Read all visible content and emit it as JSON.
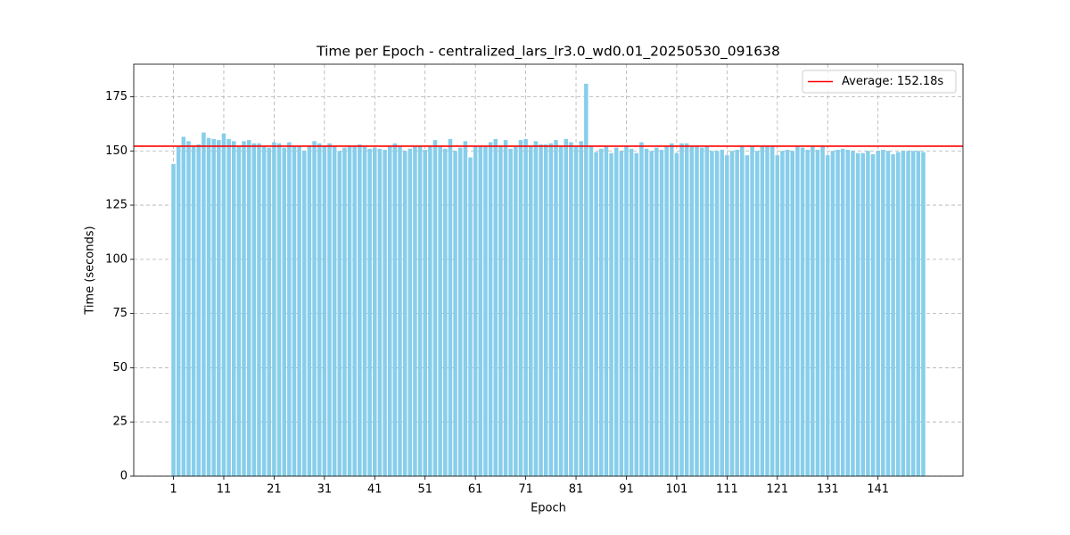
{
  "chart_data": {
    "type": "bar",
    "title": "Time per Epoch - centralized_lars_lr3.0_wd0.01_20250530_091638",
    "x_label": "Epoch",
    "y_label": "Time (seconds)",
    "color": "#87ceeb",
    "x": [
      1,
      2,
      3,
      4,
      5,
      6,
      7,
      8,
      9,
      10,
      11,
      12,
      13,
      14,
      15,
      16,
      17,
      18,
      19,
      20,
      21,
      22,
      23,
      24,
      25,
      26,
      27,
      28,
      29,
      30,
      31,
      32,
      33,
      34,
      35,
      36,
      37,
      38,
      39,
      40,
      41,
      42,
      43,
      44,
      45,
      46,
      47,
      48,
      49,
      50,
      51,
      52,
      53,
      54,
      55,
      56,
      57,
      58,
      59,
      60,
      61,
      62,
      63,
      64,
      65,
      66,
      67,
      68,
      69,
      70,
      71,
      72,
      73,
      74,
      75,
      76,
      77,
      78,
      79,
      80,
      81,
      82,
      83,
      84,
      85,
      86,
      87,
      88,
      89,
      90,
      91,
      92,
      93,
      94,
      95,
      96,
      97,
      98,
      99,
      100,
      101,
      102,
      103,
      104,
      105,
      106,
      107,
      108,
      109,
      110,
      111,
      112,
      113,
      114,
      115,
      116,
      117,
      118,
      119,
      120,
      121,
      122,
      123,
      124,
      125,
      126,
      127,
      128,
      129,
      130,
      131,
      132,
      133,
      134,
      135,
      136,
      137,
      138,
      139,
      140,
      141,
      142,
      143,
      144,
      145,
      146,
      147,
      148,
      149,
      150
    ],
    "values": [
      144,
      152,
      156.5,
      154.5,
      152,
      153,
      158.5,
      156,
      155.5,
      155,
      158,
      155.5,
      154.5,
      152,
      154.5,
      155,
      153.5,
      153.5,
      152,
      151.5,
      154,
      153.5,
      151.5,
      154,
      152,
      152,
      150,
      152.5,
      154.5,
      153.5,
      152,
      153.5,
      152,
      150,
      151.5,
      152,
      152,
      153,
      152,
      151,
      151.5,
      151,
      150.5,
      152,
      153.5,
      152,
      150,
      151,
      152,
      152,
      150.5,
      152,
      155,
      152,
      151,
      155.5,
      150,
      151.5,
      154.5,
      147,
      152,
      152,
      152,
      154,
      155.5,
      152,
      155,
      151,
      152,
      155,
      155.5,
      152,
      154.5,
      153,
      153,
      153.5,
      155,
      152,
      155.5,
      154,
      152,
      154.5,
      181,
      152,
      149.5,
      151,
      152,
      149,
      151.5,
      150,
      152,
      151,
      149,
      154,
      151,
      150,
      151.5,
      150.5,
      152,
      153.5,
      149,
      153.5,
      153.5,
      152,
      152,
      151.5,
      152,
      150,
      150,
      150.5,
      148,
      150,
      150.5,
      152,
      148,
      152,
      150,
      152,
      152,
      152,
      148,
      150,
      150.5,
      150,
      152,
      151.5,
      150.5,
      152,
      150.5,
      152,
      148,
      150,
      150.5,
      151,
      150.5,
      150,
      149,
      149,
      150,
      148.5,
      150,
      150.5,
      150,
      148.5,
      149.5,
      150,
      150,
      150,
      150,
      149.5
    ],
    "xlim": [
      -6.89,
      157.89
    ],
    "ylim": [
      0,
      190
    ],
    "xticks": [
      1,
      11,
      21,
      31,
      41,
      51,
      61,
      71,
      81,
      91,
      101,
      111,
      121,
      131,
      141
    ],
    "yticks": [
      0,
      25,
      50,
      75,
      100,
      125,
      150,
      175
    ],
    "grid": true,
    "average": {
      "label": "Average: 152.18s",
      "value": 152.18,
      "color": "#ff0000"
    },
    "legend": "upper right"
  }
}
